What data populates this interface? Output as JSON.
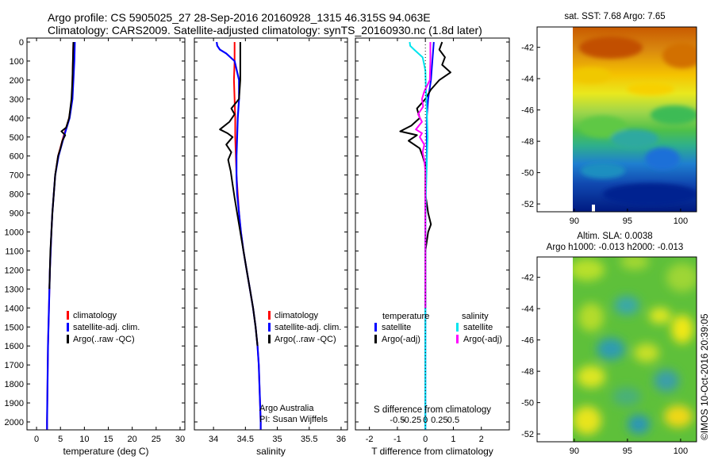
{
  "header": {
    "line1": "Argo profile: CS 5905025_27 28-Sep-2016 20160928_1315 46.315S 94.063E",
    "line2": "Climatology: CARS2009. Satellite-adjusted climatology: synTS_20160930.nc (1.8d later)"
  },
  "colors": {
    "climatology": "#ff0000",
    "satellite": "#0000ff",
    "argo": "#000000",
    "sat_salinity": "#00e5ee",
    "argo_salinity": "#ff00ff"
  },
  "chart_data": [
    {
      "type": "line",
      "name": "temperature-profile",
      "xlabel": "temperature (deg C)",
      "ylabel": "",
      "xlim": [
        -2,
        31
      ],
      "ylim": [
        0,
        2100
      ],
      "y_inverted": true,
      "xticks": [
        "0",
        "5",
        "10",
        "15",
        "20",
        "25",
        "30"
      ],
      "xtick_values": [
        0,
        5,
        10,
        15,
        20,
        25,
        30
      ],
      "yticks": [
        "0",
        "100",
        "200",
        "300",
        "400",
        "500",
        "600",
        "700",
        "800",
        "900",
        "1000",
        "1100",
        "1200",
        "1300",
        "1400",
        "1500",
        "1600",
        "1700",
        "1800",
        "1900",
        "2000"
      ],
      "legend": [
        "climatology",
        "satellite-adj. clim.",
        "Argo(..raw -QC)"
      ],
      "series": [
        {
          "name": "climatology",
          "color": "#ff0000",
          "y": [
            0,
            100,
            200,
            300,
            400,
            500,
            600,
            700,
            800,
            900,
            1000,
            1200,
            1400,
            1600,
            1800,
            2000,
            2040
          ],
          "x": [
            7.7,
            7.6,
            7.5,
            7.4,
            6.8,
            5.6,
            4.5,
            3.9,
            3.6,
            3.3,
            3.1,
            2.8,
            2.6,
            2.4,
            2.3,
            2.2,
            2.2
          ]
        },
        {
          "name": "satellite-adj. clim.",
          "color": "#0000ff",
          "y": [
            0,
            100,
            200,
            300,
            400,
            500,
            600,
            700,
            800,
            900,
            1000,
            1200,
            1400,
            1600,
            1800,
            2000,
            2040
          ],
          "x": [
            8.0,
            7.9,
            7.7,
            7.5,
            6.9,
            5.7,
            4.6,
            3.9,
            3.6,
            3.3,
            3.1,
            2.8,
            2.6,
            2.4,
            2.3,
            2.2,
            2.2
          ]
        },
        {
          "name": "Argo(..raw -QC)",
          "color": "#000000",
          "y": [
            0,
            100,
            200,
            300,
            400,
            450,
            470,
            490,
            520,
            560,
            600,
            700,
            800,
            900,
            1000,
            1100,
            1200,
            1300
          ],
          "x": [
            7.7,
            7.6,
            7.5,
            7.3,
            6.8,
            6.2,
            5.2,
            6.0,
            5.4,
            5.0,
            4.5,
            3.9,
            3.6,
            3.3,
            3.1,
            2.9,
            2.8,
            2.7
          ]
        }
      ]
    },
    {
      "type": "line",
      "name": "salinity-profile",
      "xlabel": "salinity",
      "xlim": [
        33.7,
        36.1
      ],
      "ylim": [
        0,
        2100
      ],
      "y_inverted": true,
      "xticks": [
        "34",
        "34.5",
        "35",
        "35.5",
        "36"
      ],
      "xtick_values": [
        34,
        34.5,
        35,
        35.5,
        36
      ],
      "legend": [
        "climatology",
        "satellite-adj. clim.",
        "Argo(..raw -QC)"
      ],
      "annotation": [
        "Argo Australia",
        "PI: Susan Wijffels"
      ],
      "series": [
        {
          "name": "climatology",
          "color": "#ff0000",
          "y": [
            0,
            100,
            200,
            300,
            400,
            500,
            600,
            700,
            800,
            900,
            1000,
            1100,
            1200,
            1300,
            1400,
            1500,
            1600,
            1700,
            1800,
            1900,
            2000,
            2040
          ],
          "x": [
            34.33,
            34.33,
            34.32,
            34.33,
            34.34,
            34.34,
            34.35,
            34.36,
            34.38,
            34.4,
            34.43,
            34.47,
            34.52,
            34.57,
            34.62,
            34.66,
            34.69,
            34.71,
            34.72,
            34.73,
            34.74,
            34.74
          ]
        },
        {
          "name": "satellite-adj. clim.",
          "color": "#0000ff",
          "y": [
            0,
            20,
            40,
            60,
            100,
            200,
            300,
            400,
            500,
            600,
            700,
            800,
            900,
            1000,
            1100,
            1200,
            1300,
            1400,
            1500,
            1600,
            1700,
            1800,
            1900,
            2000,
            2040
          ],
          "x": [
            34.05,
            34.06,
            34.1,
            34.2,
            34.33,
            34.4,
            34.4,
            34.38,
            34.37,
            34.36,
            34.36,
            34.37,
            34.4,
            34.43,
            34.47,
            34.52,
            34.57,
            34.62,
            34.66,
            34.69,
            34.71,
            34.72,
            34.73,
            34.74,
            34.74
          ]
        },
        {
          "name": "Argo(..raw -QC)",
          "color": "#000000",
          "y": [
            0,
            100,
            200,
            300,
            350,
            380,
            420,
            460,
            480,
            500,
            540,
            580,
            620,
            680,
            750,
            820,
            900,
            1000,
            1100,
            1200,
            1300,
            1400,
            1500,
            1600
          ],
          "x": [
            34.42,
            34.42,
            34.42,
            34.4,
            34.28,
            34.33,
            34.25,
            34.1,
            34.22,
            34.3,
            34.2,
            34.28,
            34.23,
            34.27,
            34.3,
            34.33,
            34.37,
            34.42,
            34.47,
            34.52,
            34.57,
            34.62,
            34.66,
            34.69
          ]
        }
      ]
    },
    {
      "type": "line",
      "name": "difference-profile",
      "xlabel": "T difference from climatology",
      "xlabel_top": "S difference from climatology",
      "xlim": [
        -2.5,
        3.0
      ],
      "ylim": [
        0,
        2100
      ],
      "y_inverted": true,
      "xticks": [
        "-2",
        "-1",
        "0",
        "1",
        "2"
      ],
      "xtick_values": [
        -2,
        -1,
        0,
        1,
        2
      ],
      "xticks_top": [
        "-0.5",
        "-0.25",
        "0",
        "0.25",
        "0.5"
      ],
      "xtick_values_top": [
        -0.5,
        -0.25,
        0,
        0.25,
        0.5
      ],
      "legend_left_title": "temperature",
      "legend_right_title": "salinity",
      "legend": [
        "satellite",
        "Argo(-adj)",
        "satellite",
        "Argo(-adj)"
      ],
      "series": [
        {
          "name": "satellite",
          "group": "temperature",
          "color": "#0000ff",
          "y": [
            0,
            100,
            200,
            300,
            400,
            500,
            600,
            700,
            800,
            900,
            1000,
            1200,
            1400,
            1600,
            1800,
            2000,
            2040
          ],
          "x": [
            0.3,
            0.25,
            0.2,
            0.1,
            0.05,
            0.05,
            0.05,
            0.02,
            0.0,
            0.0,
            0.0,
            0.0,
            0.0,
            0.0,
            0.0,
            0.0,
            0.0
          ]
        },
        {
          "name": "Argo(-adj)",
          "group": "temperature",
          "color": "#000000",
          "y": [
            0,
            40,
            80,
            120,
            160,
            200,
            250,
            300,
            350,
            400,
            440,
            470,
            490,
            520,
            560,
            600,
            650,
            700,
            800,
            900,
            960,
            1000,
            1100,
            1200,
            1400
          ],
          "x": [
            0.6,
            0.5,
            0.7,
            0.6,
            0.9,
            0.5,
            0.2,
            0.0,
            -0.3,
            -0.2,
            -0.5,
            -0.9,
            -0.3,
            -0.6,
            -0.2,
            -0.1,
            0.0,
            0.0,
            0.0,
            0.1,
            0.2,
            0.1,
            0.0,
            0.0,
            0.0
          ]
        },
        {
          "name": "satellite",
          "group": "salinity",
          "color": "#00e5ee",
          "y": [
            0,
            20,
            40,
            80,
            150,
            250,
            400,
            500,
            600,
            700,
            800,
            1000,
            1200,
            1400,
            1600,
            1800,
            2000,
            2040
          ],
          "x": [
            -0.28,
            -0.27,
            -0.2,
            -0.05,
            0.0,
            0.01,
            0.03,
            0.04,
            0.03,
            0.02,
            0.01,
            0.0,
            0.0,
            0.0,
            0.0,
            0.0,
            0.0,
            0.0
          ]
        },
        {
          "name": "Argo(-adj)",
          "group": "salinity",
          "color": "#ff00ff",
          "y": [
            0,
            100,
            200,
            260,
            300,
            340,
            380,
            420,
            460,
            480,
            500,
            540,
            580,
            620,
            680,
            750,
            850,
            1000,
            1200,
            1400
          ],
          "x": [
            0.09,
            0.09,
            0.08,
            -0.02,
            -0.06,
            -0.04,
            -0.13,
            -0.06,
            -0.17,
            -0.06,
            -0.1,
            -0.02,
            -0.05,
            -0.02,
            0.0,
            0.0,
            0.0,
            0.0,
            0.0,
            0.0
          ]
        }
      ]
    },
    {
      "type": "heatmap",
      "name": "sst-map",
      "title": "sat. SST: 7.68  Argo: 7.65",
      "xlim": [
        86.5,
        101.5
      ],
      "ylim": [
        -52.5,
        -40.7
      ],
      "xticks": [
        "90",
        "95",
        "100"
      ],
      "xtick_values": [
        90,
        95,
        100
      ],
      "yticks": [
        "-42",
        "-44",
        "-46",
        "-48",
        "-50",
        "-52"
      ],
      "ytick_values": [
        -42,
        -44,
        -46,
        -48,
        -50,
        -52
      ],
      "data_xrange": [
        90,
        101.5
      ],
      "argo_position": [
        94.063,
        -46.315
      ]
    },
    {
      "type": "heatmap",
      "name": "sla-map",
      "title": "Altim. SLA: 0.0038",
      "subtitle": "Argo h1000: -0.013 h2000: -0.013",
      "xlim": [
        86.5,
        101.5
      ],
      "ylim": [
        -52.5,
        -40.7
      ],
      "xticks": [
        "90",
        "95",
        "100"
      ],
      "xtick_values": [
        90,
        95,
        100
      ],
      "yticks": [
        "-42",
        "-44",
        "-46",
        "-48",
        "-50",
        "-52"
      ],
      "ytick_values": [
        -42,
        -44,
        -46,
        -48,
        -50,
        -52
      ],
      "data_xrange": [
        90,
        101.5
      ]
    }
  ],
  "stamp": "©IMOS 10-Oct-2016 20:39:05"
}
